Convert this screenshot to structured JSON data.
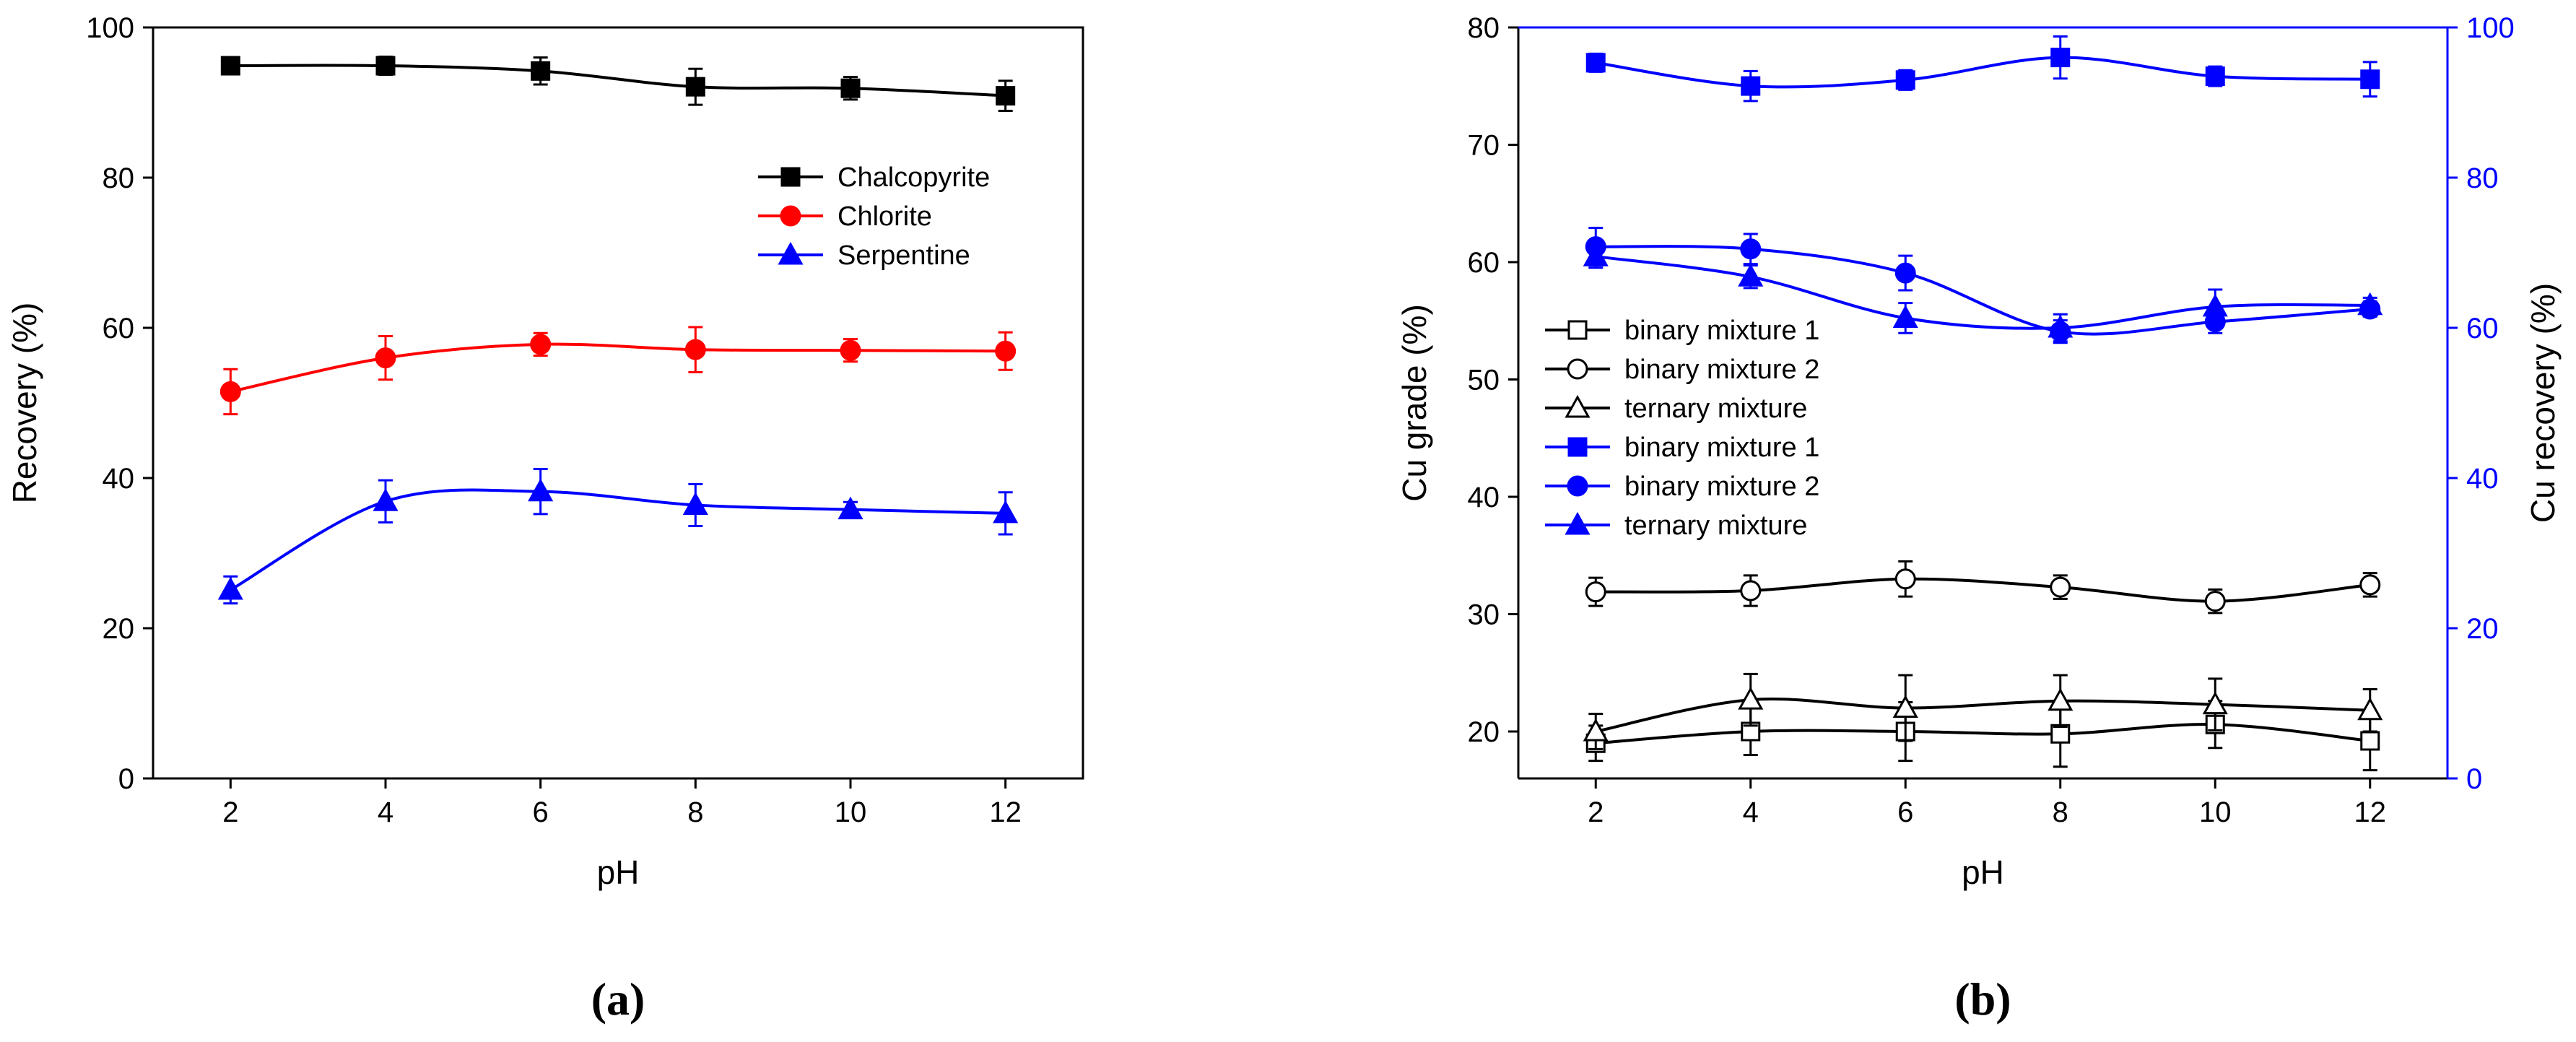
{
  "chart_data": [
    {
      "type": "line",
      "panel_label": "a",
      "title": "",
      "xlabel": "pH",
      "ylabel": "Recovery (%)",
      "xlim": [
        1,
        13
      ],
      "ylim": [
        0,
        100
      ],
      "xticks": [
        2,
        4,
        6,
        8,
        10,
        12
      ],
      "yticks": [
        0,
        20,
        40,
        60,
        80,
        100
      ],
      "legend_position": "right-upper",
      "series": [
        {
          "name": "Chalcopyrite",
          "color": "#000000",
          "marker": "square-filled",
          "x": [
            2,
            4,
            6,
            8,
            10,
            12
          ],
          "y": [
            94.9,
            94.9,
            94.2,
            92.1,
            91.9,
            90.9
          ],
          "err": [
            1.0,
            1.2,
            1.8,
            2.4,
            1.5,
            2.0
          ]
        },
        {
          "name": "Chlorite",
          "color": "#ff0000",
          "marker": "circle-filled",
          "x": [
            2,
            4,
            6,
            8,
            10,
            12
          ],
          "y": [
            51.5,
            56.0,
            57.8,
            57.1,
            57.0,
            56.9
          ],
          "err": [
            3.0,
            2.9,
            1.5,
            3.0,
            1.5,
            2.5
          ]
        },
        {
          "name": "Serpentine",
          "color": "#0000ff",
          "marker": "triangle-filled",
          "x": [
            2,
            4,
            6,
            8,
            10,
            12
          ],
          "y": [
            25.1,
            36.9,
            38.2,
            36.4,
            35.8,
            35.3
          ],
          "err": [
            1.8,
            2.8,
            3.0,
            2.8,
            1.0,
            2.8
          ]
        }
      ]
    },
    {
      "type": "line",
      "panel_label": "b",
      "title": "",
      "xlabel": "pH",
      "ylabel": "Cu grade (%)",
      "y2label": "Cu recovery (%)",
      "xlim": [
        1,
        13
      ],
      "ylim": [
        16,
        80
      ],
      "y2lim": [
        0,
        100
      ],
      "xticks": [
        2,
        4,
        6,
        8,
        10,
        12
      ],
      "yticks": [
        20,
        30,
        40,
        50,
        60,
        70,
        80
      ],
      "y2ticks": [
        0,
        20,
        40,
        60,
        80,
        100
      ],
      "legend_position": "left-middle",
      "series": [
        {
          "name": "binary mixture 1",
          "axis": "left",
          "color": "#000000",
          "marker": "square-open",
          "x": [
            2,
            4,
            6,
            8,
            10,
            12
          ],
          "y": [
            19.0,
            20.0,
            20.0,
            19.8,
            20.6,
            19.2
          ],
          "err": [
            1.5,
            2.0,
            2.5,
            2.8,
            2.0,
            2.5
          ]
        },
        {
          "name": "binary mixture 2",
          "axis": "left",
          "color": "#000000",
          "marker": "circle-open",
          "x": [
            2,
            4,
            6,
            8,
            10,
            12
          ],
          "y": [
            31.9,
            32.0,
            33.0,
            32.3,
            31.1,
            32.5
          ],
          "err": [
            1.2,
            1.3,
            1.5,
            1.0,
            1.0,
            1.0
          ]
        },
        {
          "name": "ternary mixture",
          "axis": "left",
          "color": "#000000",
          "marker": "triangle-open",
          "x": [
            2,
            4,
            6,
            8,
            10,
            12
          ],
          "y": [
            20.0,
            22.7,
            22.0,
            22.6,
            22.3,
            21.8
          ],
          "err": [
            1.5,
            2.2,
            2.8,
            2.2,
            2.2,
            1.8
          ]
        },
        {
          "name": "binary mixture 1",
          "axis": "right",
          "color": "#0000ff",
          "marker": "square-filled",
          "x": [
            2,
            4,
            6,
            8,
            10,
            12
          ],
          "y": [
            95.3,
            92.2,
            93.0,
            96.0,
            93.5,
            93.1
          ],
          "err": [
            1.2,
            2.0,
            1.3,
            2.8,
            1.3,
            2.3
          ]
        },
        {
          "name": "binary mixture 2",
          "axis": "right",
          "color": "#0000ff",
          "marker": "circle-filled",
          "x": [
            2,
            4,
            6,
            8,
            10,
            12
          ],
          "y": [
            70.8,
            70.5,
            67.3,
            59.5,
            60.8,
            62.5
          ],
          "err": [
            2.5,
            2.0,
            2.3,
            1.5,
            1.5,
            1.0
          ]
        },
        {
          "name": "ternary mixture",
          "axis": "right",
          "color": "#0000ff",
          "marker": "triangle-filled",
          "x": [
            2,
            4,
            6,
            8,
            10,
            12
          ],
          "y": [
            69.5,
            66.8,
            61.3,
            60.0,
            62.8,
            63.0
          ],
          "err": [
            1.5,
            1.5,
            2.0,
            1.8,
            2.3,
            1.0
          ]
        }
      ]
    }
  ]
}
